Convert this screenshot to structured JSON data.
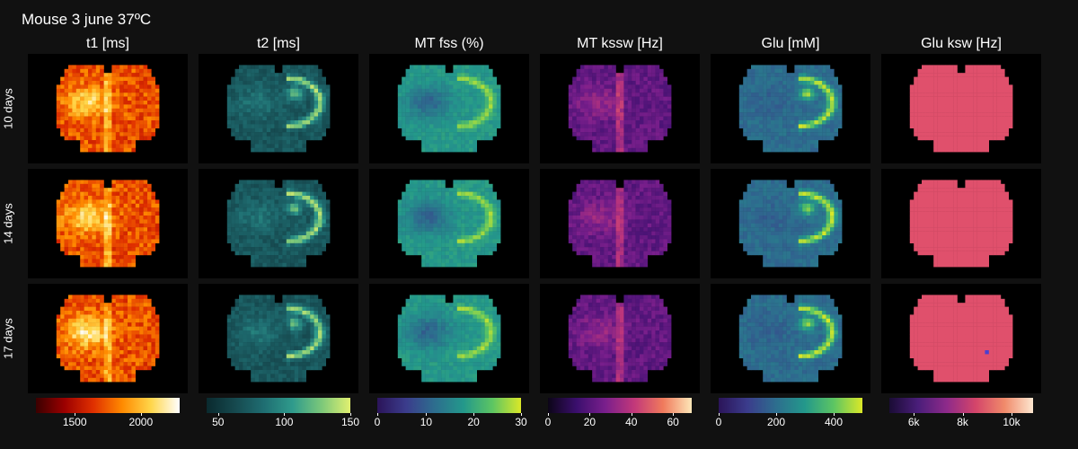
{
  "title": "Mouse 3 june 37ºC",
  "columns": [
    {
      "title": "t1 [ms]",
      "colormap": "hot",
      "colors": [
        "#3a0000",
        "#9c0000",
        "#e03000",
        "#ff8a00",
        "#ffd64a",
        "#ffffff"
      ],
      "ticks": [
        {
          "label": "1500",
          "pos": 0.27
        },
        {
          "label": "2000",
          "pos": 0.73
        }
      ]
    },
    {
      "title": "t2 [ms]",
      "colormap": "teal",
      "colors": [
        "#0a2a2e",
        "#16494f",
        "#1f6e72",
        "#2f9b8c",
        "#7cc87a",
        "#e1f070"
      ],
      "ticks": [
        {
          "label": "50",
          "pos": 0.08
        },
        {
          "label": "100",
          "pos": 0.54
        },
        {
          "label": "150",
          "pos": 1.0
        }
      ]
    },
    {
      "title": "MT fss (%)",
      "colormap": "viridis",
      "colors": [
        "#2b1459",
        "#3b3c8c",
        "#2d6e8e",
        "#23988b",
        "#5cc563",
        "#dbe828"
      ],
      "ticks": [
        {
          "label": "0",
          "pos": 0.0
        },
        {
          "label": "10",
          "pos": 0.34
        },
        {
          "label": "20",
          "pos": 0.67
        },
        {
          "label": "30",
          "pos": 1.0
        }
      ]
    },
    {
      "title": "MT kssw [Hz]",
      "colormap": "magma",
      "colors": [
        "#0c0517",
        "#3b0f6e",
        "#7a1f8c",
        "#c2387a",
        "#f07a5c",
        "#fde7b8"
      ],
      "ticks": [
        {
          "label": "0",
          "pos": 0.0
        },
        {
          "label": "20",
          "pos": 0.29
        },
        {
          "label": "40",
          "pos": 0.58
        },
        {
          "label": "60",
          "pos": 0.87
        }
      ]
    },
    {
      "title": "Glu [mM]",
      "colormap": "viridis",
      "colors": [
        "#2b1459",
        "#3b3c8c",
        "#2d6e8e",
        "#23988b",
        "#5cc563",
        "#dbe828"
      ],
      "ticks": [
        {
          "label": "0",
          "pos": 0.0
        },
        {
          "label": "200",
          "pos": 0.4
        },
        {
          "label": "400",
          "pos": 0.8
        }
      ]
    },
    {
      "title": "Glu ksw [Hz]",
      "colormap": "magma",
      "colors": [
        "#1a0c35",
        "#4a1e7a",
        "#8e2a8a",
        "#d4456a",
        "#f08a6a",
        "#fde7d0"
      ],
      "ticks": [
        {
          "label": "6k",
          "pos": 0.17
        },
        {
          "label": "8k",
          "pos": 0.51
        },
        {
          "label": "10k",
          "pos": 0.85
        }
      ]
    }
  ],
  "rows": [
    "10 days",
    "14 days",
    "17 days"
  ],
  "chart_data": {
    "type": "heatmap",
    "title": "Mouse 3 june 37ºC",
    "columns": [
      "t1 [ms]",
      "t2 [ms]",
      "MT fss (%)",
      "MT kssw [Hz]",
      "Glu [mM]",
      "Glu ksw [Hz]"
    ],
    "rows": [
      "10 days",
      "14 days",
      "17 days"
    ],
    "colorbar_ticks": {
      "t1 [ms]": [
        1500,
        2000
      ],
      "t2 [ms]": [
        50,
        100,
        150
      ],
      "MT fss (%)": [
        0,
        10,
        20,
        30
      ],
      "MT kssw [Hz]": [
        0,
        20,
        40,
        60
      ],
      "Glu [mM]": [
        0,
        200,
        400
      ],
      "Glu ksw [Hz]": [
        "6k",
        "8k",
        "10k"
      ]
    },
    "colorscale_ranges": {
      "t1 [ms]": [
        1200,
        2300
      ],
      "t2 [ms]": [
        40,
        150
      ],
      "MT fss (%)": [
        0,
        30
      ],
      "MT kssw [Hz]": [
        0,
        69
      ],
      "Glu [mM]": [
        0,
        500
      ],
      "Glu ksw [Hz]": [
        5000,
        10900
      ]
    }
  }
}
